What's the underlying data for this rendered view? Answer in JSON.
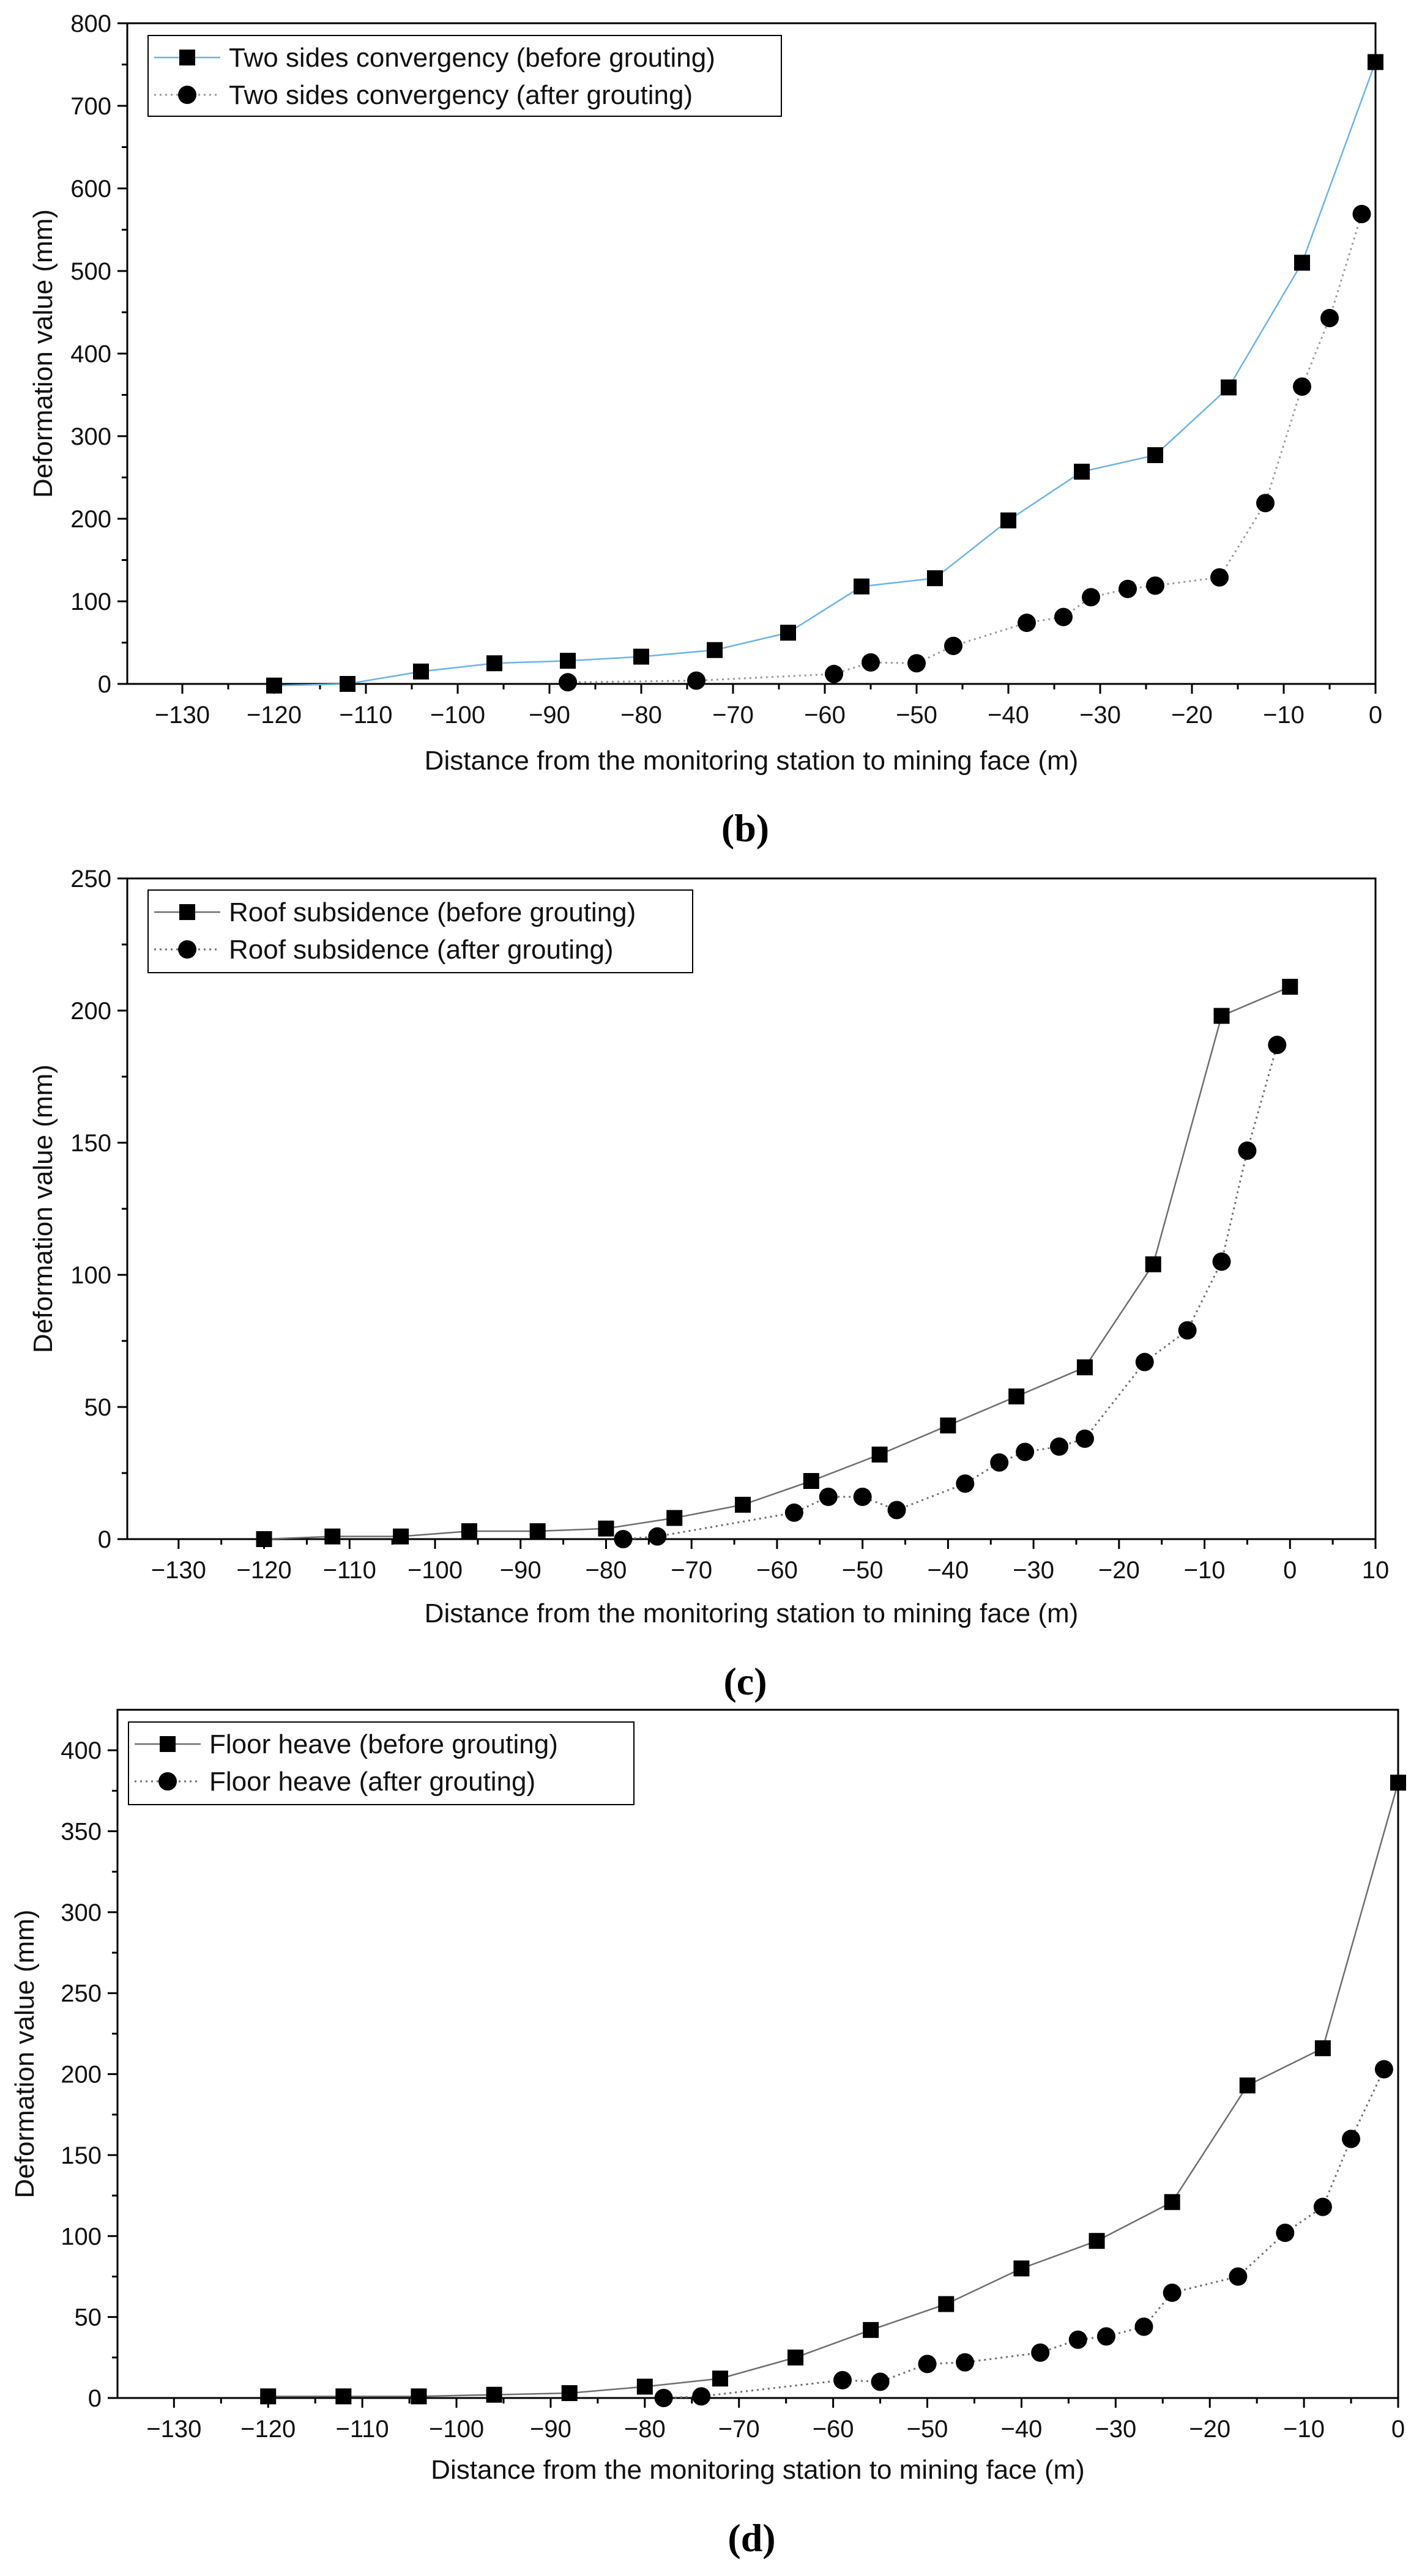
{
  "chart_data": [
    {
      "type": "line",
      "panel_label": "(b)",
      "xlabel": "Distance from the monitoring station to mining face (m)",
      "ylabel": "Deformation value (mm)",
      "xlim": [
        -136,
        0
      ],
      "ylim": [
        0,
        800
      ],
      "xticks": [
        -130,
        -120,
        -110,
        -100,
        -90,
        -80,
        -70,
        -60,
        -50,
        -40,
        -30,
        -20,
        -10,
        0
      ],
      "yticks": [
        0,
        100,
        200,
        300,
        400,
        500,
        600,
        700,
        800
      ],
      "legend_position": "top-left",
      "series": [
        {
          "name": "Two sides convergency (before grouting)",
          "marker": "square",
          "line_style": "solid",
          "color": "#6cb4e4",
          "x": [
            -120,
            -112,
            -104,
            -96,
            -88,
            -80,
            -72,
            -64,
            -56,
            -48,
            -40,
            -32,
            -24,
            -16,
            -8,
            0
          ],
          "y": [
            -2,
            0,
            15,
            25,
            28,
            33,
            41,
            62,
            118,
            128,
            198,
            257,
            277,
            359,
            510,
            753
          ]
        },
        {
          "name": "Two sides convergency (after grouting)",
          "marker": "circle",
          "line_style": "dotted",
          "color": "#9a9a9a",
          "x": [
            -88,
            -74,
            -59,
            -55,
            -50,
            -46,
            -38,
            -34,
            -31,
            -27,
            -24,
            -17,
            -12,
            -8,
            -5,
            -1.5
          ],
          "y": [
            2,
            4,
            12,
            26,
            25,
            46,
            74,
            81,
            105,
            115,
            119,
            129,
            219,
            360,
            443,
            569
          ]
        }
      ]
    },
    {
      "type": "line",
      "panel_label": "(c)",
      "xlabel": "Distance from the monitoring station to mining face (m)",
      "ylabel": "Deformation value (mm)",
      "xlim": [
        -136,
        10
      ],
      "ylim": [
        0,
        250
      ],
      "xticks": [
        -130,
        -120,
        -110,
        -100,
        -90,
        -80,
        -70,
        -60,
        -50,
        -40,
        -30,
        -20,
        -10,
        0,
        10
      ],
      "yticks": [
        0,
        50,
        100,
        150,
        200,
        250
      ],
      "legend_position": "top-left",
      "series": [
        {
          "name": "Roof subsidence (before grouting)",
          "marker": "square",
          "line_style": "solid",
          "color": "#6e6e6e",
          "x": [
            -120,
            -112,
            -104,
            -96,
            -88,
            -80,
            -72,
            -64,
            -56,
            -48,
            -40,
            -32,
            -24,
            -16,
            -8,
            0
          ],
          "y": [
            0,
            1,
            1,
            3,
            3,
            4,
            8,
            13,
            22,
            32,
            43,
            54,
            65,
            104,
            198,
            209
          ]
        },
        {
          "name": "Roof subsidence (after grouting)",
          "marker": "circle",
          "line_style": "dotted",
          "color": "#6e6e6e",
          "x": [
            -78,
            -74,
            -58,
            -54,
            -50,
            -46,
            -38,
            -34,
            -31,
            -27,
            -24,
            -17,
            -12,
            -8,
            -5,
            -1.5
          ],
          "y": [
            0,
            1,
            10,
            16,
            16,
            11,
            21,
            29,
            33,
            35,
            38,
            67,
            79,
            105,
            147,
            187
          ]
        }
      ]
    },
    {
      "type": "line",
      "panel_label": "(d)",
      "xlabel": "Distance from the monitoring station to mining face (m)",
      "ylabel": "Deformation value (mm)",
      "xlim": [
        -136,
        0
      ],
      "ylim": [
        0,
        425
      ],
      "xticks": [
        -130,
        -120,
        -110,
        -100,
        -90,
        -80,
        -70,
        -60,
        -50,
        -40,
        -30,
        -20,
        -10,
        0
      ],
      "yticks": [
        0,
        50,
        100,
        150,
        200,
        250,
        300,
        350,
        400
      ],
      "legend_position": "top-left",
      "series": [
        {
          "name": "Floor heave (before grouting)",
          "marker": "square",
          "line_style": "solid",
          "color": "#6e6e6e",
          "x": [
            -120,
            -112,
            -104,
            -96,
            -88,
            -80,
            -72,
            -64,
            -56,
            -48,
            -40,
            -32,
            -24,
            -16,
            -8,
            0
          ],
          "y": [
            1,
            1,
            1,
            2,
            3,
            7,
            12,
            25,
            42,
            58,
            80,
            97,
            121,
            193,
            216,
            380
          ]
        },
        {
          "name": "Floor heave (after grouting)",
          "marker": "circle",
          "line_style": "dotted",
          "color": "#6e6e6e",
          "x": [
            -78,
            -74,
            -59,
            -55,
            -50,
            -46,
            -38,
            -34,
            -31,
            -27,
            -24,
            -17,
            -12,
            -8,
            -5,
            -1.5
          ],
          "y": [
            0,
            1,
            11,
            10,
            21,
            22,
            28,
            36,
            38,
            44,
            65,
            75,
            102,
            118,
            160,
            203
          ]
        }
      ]
    }
  ]
}
